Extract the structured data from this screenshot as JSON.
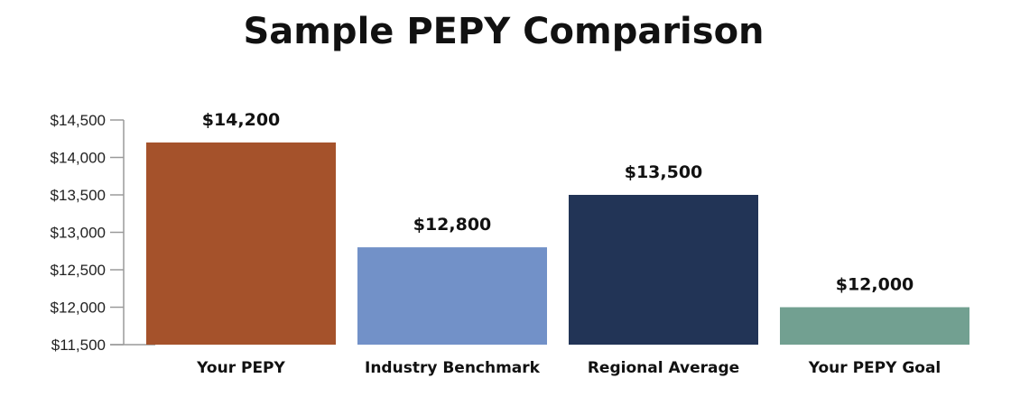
{
  "chart_data": {
    "type": "bar",
    "title": "Sample PEPY Comparison",
    "xlabel": "",
    "ylabel": "",
    "categories": [
      "Your PEPY",
      "Industry Benchmark",
      "Regional Average",
      "Your PEPY Goal"
    ],
    "values": [
      14200,
      12800,
      13500,
      12000
    ],
    "value_labels": [
      "$14,200",
      "$12,800",
      "$13,500",
      "$12,000"
    ],
    "colors": [
      "#a5522b",
      "#7291c8",
      "#223456",
      "#72a091"
    ],
    "ylim": [
      11500,
      14500
    ],
    "yticks": [
      11500,
      12000,
      12500,
      13000,
      13500,
      14000,
      14500
    ],
    "ytick_labels": [
      "$11,500",
      "$12,000",
      "$12,500",
      "$13,000",
      "$13,500",
      "$14,000",
      "$14,500"
    ],
    "grid": false,
    "legend": "none"
  }
}
